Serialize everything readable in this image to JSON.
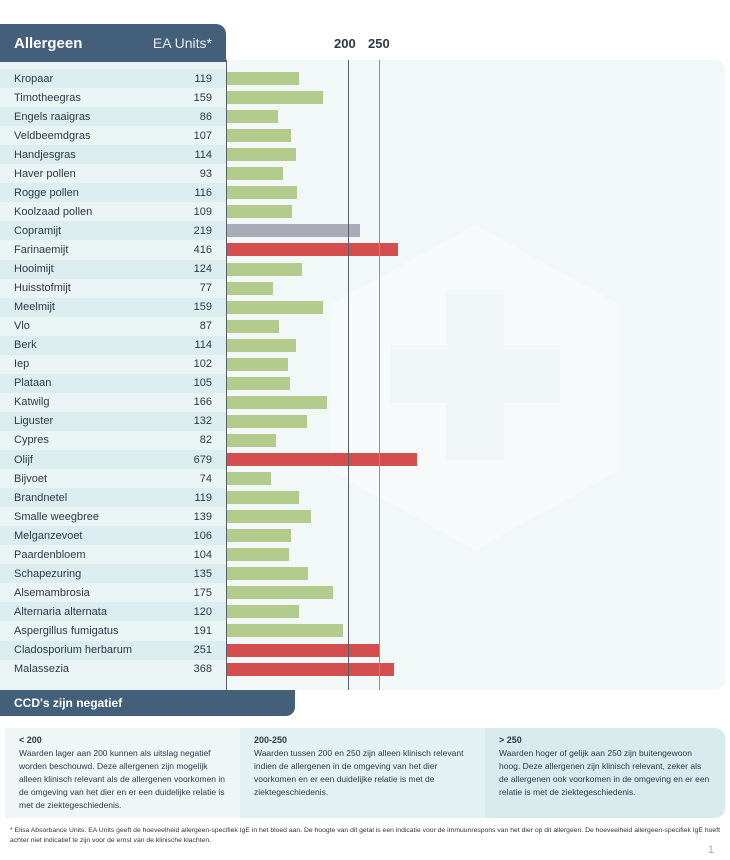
{
  "header": {
    "title": "Allergeen",
    "units": "EA Units*"
  },
  "chart_data": {
    "type": "bar",
    "orientation": "horizontal",
    "title": "Allergeen",
    "xlabel": "EA Units*",
    "reference_lines": [
      200,
      250
    ],
    "tick_labels": [
      "200",
      "250"
    ],
    "categories": [
      "Kropaar",
      "Timotheegras",
      "Engels raaigras",
      "Veldbeemdgras",
      "Handjesgras",
      "Haver pollen",
      "Rogge pollen",
      "Koolzaad pollen",
      "Copramijt",
      "Farinaemijt",
      "Hooimijt",
      "Huisstofmijt",
      "Meelmijt",
      "Vlo",
      "Berk",
      "Iep",
      "Plataan",
      "Katwilg",
      "Liguster",
      "Cypres",
      "Olijf",
      "Bijvoet",
      "Brandnetel",
      "Smalle weegbree",
      "Melganzevoet",
      "Paardenbloem",
      "Schapezuring",
      "Alsemambrosia",
      "Alternaria alternata",
      "Aspergillus fumigatus",
      "Cladosporium herbarum",
      "Malassezia"
    ],
    "values": [
      119,
      159,
      86,
      107,
      114,
      93,
      116,
      109,
      219,
      416,
      124,
      77,
      159,
      87,
      114,
      102,
      105,
      166,
      132,
      82,
      679,
      74,
      119,
      139,
      106,
      104,
      135,
      175,
      120,
      191,
      251,
      368
    ],
    "colors": {
      "low": "#b3cb8c",
      "mid": "#a9abb6",
      "high": "#d44e4f"
    }
  },
  "ccd": "CCD's zijn negatief",
  "legend": [
    {
      "label": "< 200",
      "text": "Waarden lager aan 200 kunnen als uitslag negatief worden beschouwd. Deze allergenen zijn mogelijk alleen klinisch relevant als de allergenen voorkomen in de omgeving van het dier en er een duidelijke relatie is met de ziektegeschiedenis."
    },
    {
      "label": "200-250",
      "text": "Waarden tussen 200 en 250 zijn alleen klinisch relevant indien de allergenen in de omgeving van het dier voorkomen en er een duidelijke relatie is met de ziektegeschiedenis."
    },
    {
      "label": "> 250",
      "text": "Waarden hoger of gelijk aan 250 zijn buiten­gewoon hoog. Deze allergenen zijn klinisch relevant, zeker als de allergenen ook voorko­men in de omgeving en er een relatie is met de ziektegeschiedenis."
    }
  ],
  "footnote": "* Elisa Absorbance Units. EA Units geeft de hoeveelheid allergeen-specifiek IgE in het bloed aan. De hoogte van dit getal is een indicatie voor de immuunrespons van het dier op dit allergeen. De hoeveelheid allergeen-specifiek IgE hoeft achter niet indicatief te zijn voor de ernst van de klinische klachten.",
  "page_number": "1"
}
